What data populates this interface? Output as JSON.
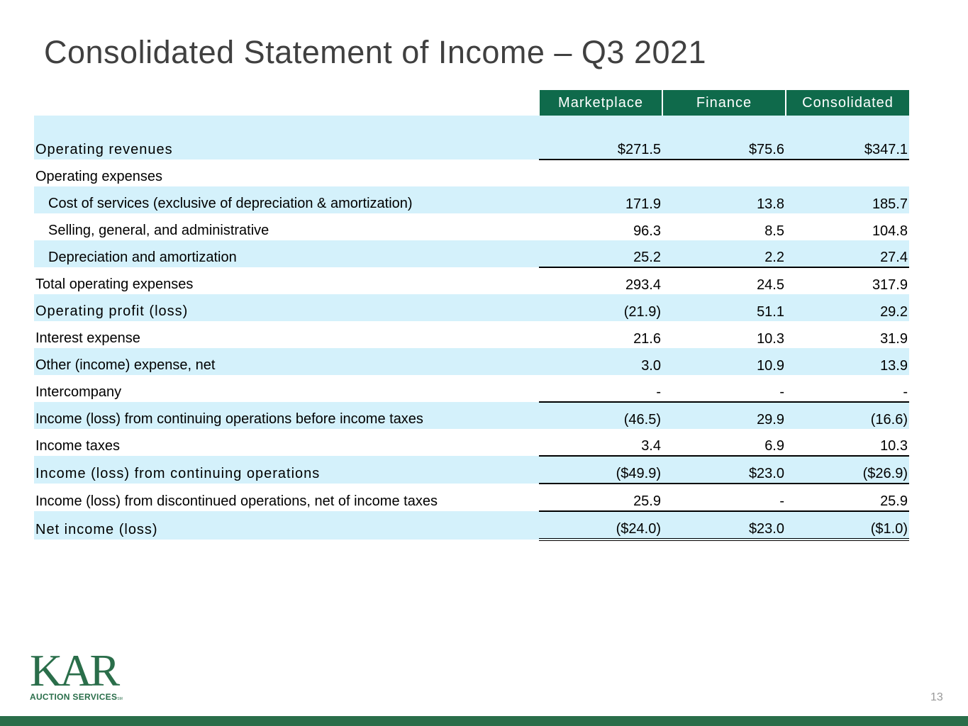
{
  "title": "Consolidated Statement of Income – Q3 2021",
  "table": {
    "headers": [
      "Marketplace",
      "Finance",
      "Consolidated"
    ],
    "rows": [
      {
        "label": "Operating revenues",
        "values": [
          "$271.5",
          "$75.6",
          "$347.1"
        ]
      },
      {
        "label": "Operating expenses"
      },
      {
        "label": "Cost of services (exclusive of depreciation & amortization)",
        "values": [
          "171.9",
          "13.8",
          "185.7"
        ]
      },
      {
        "label": "Selling, general, and administrative",
        "values": [
          "96.3",
          "8.5",
          "104.8"
        ]
      },
      {
        "label": "Depreciation and amortization",
        "values": [
          "25.2",
          "2.2",
          "27.4"
        ]
      },
      {
        "label": "Total operating expenses",
        "values": [
          "293.4",
          "24.5",
          "317.9"
        ]
      },
      {
        "label": "Operating profit (loss)",
        "values": [
          "(21.9)",
          "51.1",
          "29.2"
        ]
      },
      {
        "label": "Interest expense",
        "values": [
          "21.6",
          "10.3",
          "31.9"
        ]
      },
      {
        "label": "Other (income) expense, net",
        "values": [
          "3.0",
          "10.9",
          "13.9"
        ]
      },
      {
        "label": "Intercompany",
        "values": [
          "-",
          "-",
          "-"
        ]
      },
      {
        "label": "Income (loss) from continuing operations before income taxes",
        "values": [
          "(46.5)",
          "29.9",
          "(16.6)"
        ]
      },
      {
        "label": "Income taxes",
        "values": [
          "3.4",
          "6.9",
          "10.3"
        ]
      },
      {
        "label": "Income (loss) from continuing operations",
        "values": [
          "($49.9)",
          "$23.0",
          "($26.9)"
        ]
      },
      {
        "label": "Income (loss) from discontinued operations, net of income taxes",
        "values": [
          "25.9",
          "-",
          "25.9"
        ]
      },
      {
        "label": "Net income (loss)",
        "values": [
          "($24.0)",
          "$23.0",
          "($1.0)"
        ]
      }
    ]
  },
  "logo": {
    "name": "KAR",
    "tagline": "AUCTION SERVICES",
    "mark": "SM"
  },
  "page_number": "13"
}
